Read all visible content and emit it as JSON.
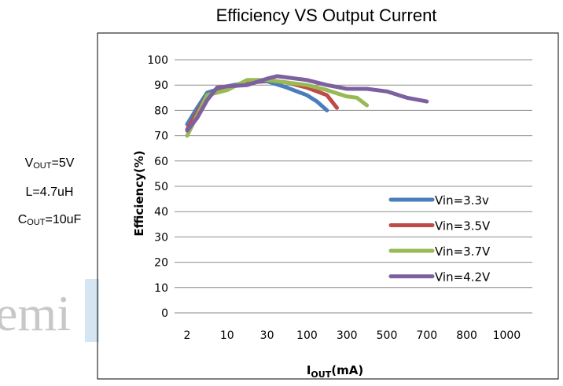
{
  "watermark": "emi",
  "conditions": [
    {
      "main": "V",
      "sub": "OUT",
      "rest": "=5V"
    },
    {
      "main": "L=4.7uH",
      "sub": "",
      "rest": ""
    },
    {
      "main": "C",
      "sub": "OUT",
      "rest": "=10uF"
    }
  ],
  "chart_data": {
    "type": "line",
    "title": "Efficiency VS Output Current",
    "xlabel": {
      "main": "I",
      "sub": "OUT",
      "rest": "(mA)"
    },
    "ylabel": "Efficiency(%)",
    "categories": [
      "2",
      "10",
      "30",
      "100",
      "300",
      "500",
      "700",
      "800",
      "1000"
    ],
    "ylim": [
      0,
      100
    ],
    "yticks": [
      0,
      10,
      20,
      30,
      40,
      50,
      60,
      70,
      80,
      90,
      100
    ],
    "grid": true,
    "legend_position": "bottom-right",
    "series": [
      {
        "name": "Vin=3.3v",
        "color": "#4a7ebb",
        "points": [
          [
            0,
            74.5
          ],
          [
            0.5,
            81
          ],
          [
            1,
            87
          ],
          [
            2,
            89.5
          ],
          [
            3,
            91
          ],
          [
            4,
            91.5
          ],
          [
            5,
            89
          ],
          [
            6,
            86
          ],
          [
            6.5,
            83.5
          ],
          [
            7,
            80
          ]
        ]
      },
      {
        "name": "Vin=3.5V",
        "color": "#be4b48",
        "points": [
          [
            0,
            72.5
          ],
          [
            1,
            86
          ],
          [
            2,
            89
          ],
          [
            3,
            90.5
          ],
          [
            4,
            92
          ],
          [
            5,
            91
          ],
          [
            6,
            89
          ],
          [
            7,
            86
          ],
          [
            7.5,
            81
          ]
        ]
      },
      {
        "name": "Vin=3.7V",
        "color": "#98b954",
        "points": [
          [
            0,
            70
          ],
          [
            1,
            86
          ],
          [
            2,
            88
          ],
          [
            3,
            92
          ],
          [
            4,
            92
          ],
          [
            5,
            91
          ],
          [
            6,
            90
          ],
          [
            7,
            88
          ],
          [
            8,
            85.5
          ],
          [
            8.5,
            85
          ],
          [
            9,
            82
          ]
        ]
      },
      {
        "name": "Vin=4.2V",
        "color": "#7d60a0",
        "points": [
          [
            0,
            72
          ],
          [
            0.5,
            77
          ],
          [
            1,
            84
          ],
          [
            1.5,
            89
          ],
          [
            2,
            89.5
          ],
          [
            3,
            90
          ],
          [
            4,
            92.5
          ],
          [
            4.5,
            93.5
          ],
          [
            5,
            93
          ],
          [
            6,
            92
          ],
          [
            7,
            90
          ],
          [
            8,
            88.5
          ],
          [
            9,
            88.5
          ],
          [
            10,
            87.5
          ],
          [
            11,
            85
          ],
          [
            12,
            83.5
          ]
        ]
      }
    ]
  }
}
